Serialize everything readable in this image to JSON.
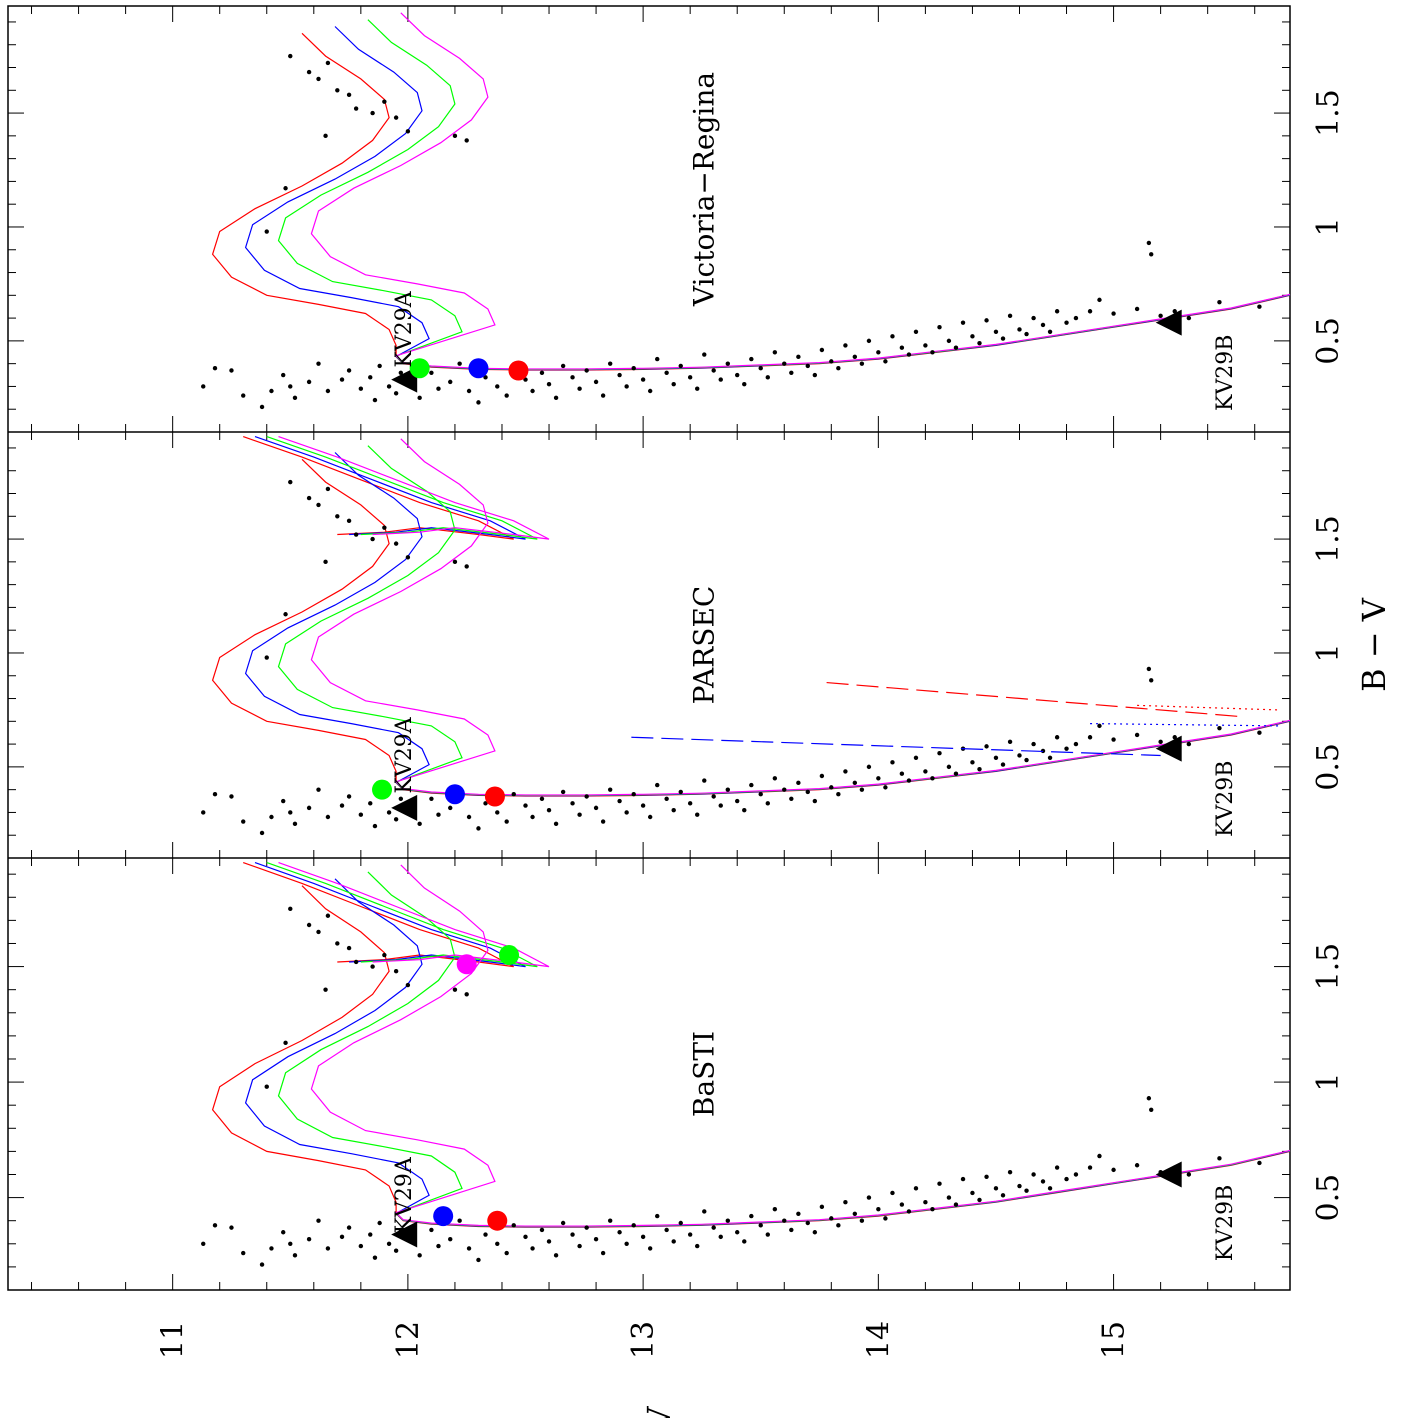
{
  "chart_data": {
    "type": "scatter",
    "orientation": "rotated-90",
    "xlabel": "V",
    "ylabel": "B − V",
    "x_ticks": [
      "11",
      "12",
      "13",
      "14",
      "15"
    ],
    "xlim": [
      10.3,
      15.75
    ],
    "y_ticks": [
      "0.5",
      "1",
      "1.5"
    ],
    "ylim": [
      0.1,
      1.97
    ],
    "colors": {
      "red": "#ff0000",
      "blue": "#0000ff",
      "green": "#00ff00",
      "magenta": "#ff00ff",
      "black": "#000000"
    },
    "panels": [
      {
        "title": "BaSTI",
        "labels": [
          {
            "text": "KV29A",
            "V": 11.98,
            "BV": 0.51
          },
          {
            "text": "KV29B",
            "V": 15.47,
            "BV": 0.39
          }
        ],
        "triangles": [
          {
            "V": 11.98,
            "BV": 0.34
          },
          {
            "V": 15.23,
            "BV": 0.6
          }
        ],
        "markers": [
          {
            "color": "blue",
            "V": 12.15,
            "BV": 0.42
          },
          {
            "color": "red",
            "V": 12.38,
            "BV": 0.4
          },
          {
            "color": "magenta",
            "V": 12.25,
            "BV": 1.51
          },
          {
            "color": "green",
            "V": 12.43,
            "BV": 1.55
          }
        ],
        "isochrones": [
          {
            "color": "red",
            "dV": 0.0,
            "dBV": 0.0,
            "branch": 0.0
          },
          {
            "color": "blue",
            "dV": 0.14,
            "dBV": 0.03,
            "branch": 0.05
          },
          {
            "color": "green",
            "dV": 0.28,
            "dBV": 0.06,
            "branch": 0.1
          },
          {
            "color": "magenta",
            "dV": 0.42,
            "dBV": 0.09,
            "branch": 0.15
          }
        ]
      },
      {
        "title": "PARSEC",
        "labels": [
          {
            "text": "KV29A",
            "V": 11.98,
            "BV": 0.55
          },
          {
            "text": "KV29B",
            "V": 15.47,
            "BV": 0.36
          }
        ],
        "triangles": [
          {
            "V": 11.98,
            "BV": 0.32
          },
          {
            "V": 15.23,
            "BV": 0.58
          }
        ],
        "markers": [
          {
            "color": "green",
            "V": 11.89,
            "BV": 0.4
          },
          {
            "color": "blue",
            "V": 12.2,
            "BV": 0.38
          },
          {
            "color": "red",
            "V": 12.37,
            "BV": 0.37
          }
        ],
        "isochrones": [
          {
            "color": "red",
            "dV": 0.0,
            "dBV": 0.0,
            "branch": 0.0
          },
          {
            "color": "blue",
            "dV": 0.14,
            "dBV": 0.03,
            "branch": 0.05
          },
          {
            "color": "green",
            "dV": 0.28,
            "dBV": 0.06,
            "branch": 0.1
          },
          {
            "color": "magenta",
            "dV": 0.42,
            "dBV": 0.09,
            "branch": 0.15
          }
        ]
      },
      {
        "title": "Victoria−Regina",
        "labels": [
          {
            "text": "KV29A",
            "V": 11.98,
            "BV": 0.55
          },
          {
            "text": "KV29B",
            "V": 15.47,
            "BV": 0.36
          }
        ],
        "triangles": [
          {
            "V": 11.98,
            "BV": 0.33
          },
          {
            "V": 15.23,
            "BV": 0.58
          }
        ],
        "markers": [
          {
            "color": "green",
            "V": 12.05,
            "BV": 0.38
          },
          {
            "color": "blue",
            "V": 12.3,
            "BV": 0.38
          },
          {
            "color": "red",
            "V": 12.47,
            "BV": 0.37
          }
        ],
        "isochrones": [
          {
            "color": "red",
            "dV": 0.0,
            "dBV": 0.0,
            "branch": 0.0
          },
          {
            "color": "blue",
            "dV": 0.14,
            "dBV": 0.03,
            "branch": 0.05
          },
          {
            "color": "green",
            "dV": 0.28,
            "dBV": 0.06,
            "branch": 0.1
          },
          {
            "color": "magenta",
            "dV": 0.42,
            "dBV": 0.09,
            "branch": 0.15
          }
        ]
      }
    ],
    "stars": [
      [
        11.13,
        0.3
      ],
      [
        11.18,
        0.38
      ],
      [
        11.25,
        0.37
      ],
      [
        11.3,
        0.26
      ],
      [
        11.38,
        0.21
      ],
      [
        11.42,
        0.28
      ],
      [
        11.47,
        0.35
      ],
      [
        11.5,
        0.3
      ],
      [
        11.52,
        0.25
      ],
      [
        11.58,
        0.32
      ],
      [
        11.62,
        0.4
      ],
      [
        11.66,
        0.28
      ],
      [
        11.72,
        0.33
      ],
      [
        11.75,
        0.37
      ],
      [
        11.8,
        0.29
      ],
      [
        11.84,
        0.34
      ],
      [
        11.86,
        0.24
      ],
      [
        11.88,
        0.39
      ],
      [
        11.92,
        0.3
      ],
      [
        11.95,
        0.27
      ],
      [
        11.97,
        0.36
      ],
      [
        12.02,
        0.31
      ],
      [
        12.05,
        0.25
      ],
      [
        12.1,
        0.36
      ],
      [
        12.13,
        0.29
      ],
      [
        12.18,
        0.32
      ],
      [
        12.22,
        0.4
      ],
      [
        12.26,
        0.28
      ],
      [
        12.3,
        0.23
      ],
      [
        12.33,
        0.34
      ],
      [
        12.38,
        0.3
      ],
      [
        12.42,
        0.26
      ],
      [
        12.45,
        0.38
      ],
      [
        12.5,
        0.33
      ],
      [
        12.53,
        0.28
      ],
      [
        12.57,
        0.36
      ],
      [
        12.6,
        0.31
      ],
      [
        12.63,
        0.25
      ],
      [
        12.66,
        0.39
      ],
      [
        12.7,
        0.34
      ],
      [
        12.73,
        0.29
      ],
      [
        12.76,
        0.37
      ],
      [
        12.8,
        0.32
      ],
      [
        12.83,
        0.26
      ],
      [
        12.86,
        0.4
      ],
      [
        12.9,
        0.35
      ],
      [
        12.93,
        0.3
      ],
      [
        12.96,
        0.38
      ],
      [
        13.0,
        0.33
      ],
      [
        13.03,
        0.28
      ],
      [
        13.06,
        0.42
      ],
      [
        13.1,
        0.36
      ],
      [
        13.13,
        0.31
      ],
      [
        13.16,
        0.39
      ],
      [
        13.2,
        0.34
      ],
      [
        13.23,
        0.29
      ],
      [
        13.26,
        0.44
      ],
      [
        13.3,
        0.37
      ],
      [
        13.33,
        0.33
      ],
      [
        13.36,
        0.4
      ],
      [
        13.4,
        0.35
      ],
      [
        13.43,
        0.31
      ],
      [
        13.46,
        0.42
      ],
      [
        13.5,
        0.38
      ],
      [
        13.53,
        0.34
      ],
      [
        13.56,
        0.45
      ],
      [
        13.6,
        0.4
      ],
      [
        13.63,
        0.36
      ],
      [
        13.66,
        0.43
      ],
      [
        13.7,
        0.39
      ],
      [
        13.73,
        0.35
      ],
      [
        13.76,
        0.46
      ],
      [
        13.8,
        0.41
      ],
      [
        13.83,
        0.38
      ],
      [
        13.86,
        0.48
      ],
      [
        13.9,
        0.43
      ],
      [
        13.93,
        0.4
      ],
      [
        13.96,
        0.5
      ],
      [
        14.0,
        0.45
      ],
      [
        14.03,
        0.41
      ],
      [
        14.06,
        0.52
      ],
      [
        14.1,
        0.47
      ],
      [
        14.13,
        0.44
      ],
      [
        14.16,
        0.54
      ],
      [
        14.2,
        0.48
      ],
      [
        14.23,
        0.45
      ],
      [
        14.26,
        0.56
      ],
      [
        14.3,
        0.5
      ],
      [
        14.33,
        0.47
      ],
      [
        14.36,
        0.58
      ],
      [
        14.4,
        0.52
      ],
      [
        14.43,
        0.49
      ],
      [
        14.46,
        0.59
      ],
      [
        14.5,
        0.54
      ],
      [
        14.53,
        0.51
      ],
      [
        14.56,
        0.61
      ],
      [
        14.6,
        0.55
      ],
      [
        14.63,
        0.53
      ],
      [
        14.66,
        0.6
      ],
      [
        14.7,
        0.57
      ],
      [
        14.73,
        0.54
      ],
      [
        14.76,
        0.63
      ],
      [
        14.8,
        0.58
      ],
      [
        14.84,
        0.6
      ],
      [
        14.9,
        0.63
      ],
      [
        14.94,
        0.68
      ],
      [
        15.0,
        0.62
      ],
      [
        15.1,
        0.64
      ],
      [
        15.2,
        0.61
      ],
      [
        15.26,
        0.63
      ],
      [
        15.32,
        0.6
      ],
      [
        15.45,
        0.67
      ],
      [
        15.62,
        0.65
      ],
      [
        15.15,
        0.93
      ],
      [
        15.16,
        0.88
      ],
      [
        11.4,
        0.98
      ],
      [
        11.48,
        1.17
      ],
      [
        11.65,
        1.4
      ],
      [
        11.75,
        1.58
      ],
      [
        11.58,
        1.68
      ],
      [
        11.62,
        1.65
      ],
      [
        11.9,
        1.55
      ],
      [
        11.85,
        1.5
      ],
      [
        12.0,
        1.42
      ],
      [
        12.2,
        1.4
      ],
      [
        11.78,
        1.52
      ],
      [
        11.7,
        1.6
      ],
      [
        12.25,
        1.38
      ],
      [
        11.95,
        1.48
      ],
      [
        11.5,
        1.75
      ],
      [
        11.66,
        1.72
      ]
    ]
  }
}
